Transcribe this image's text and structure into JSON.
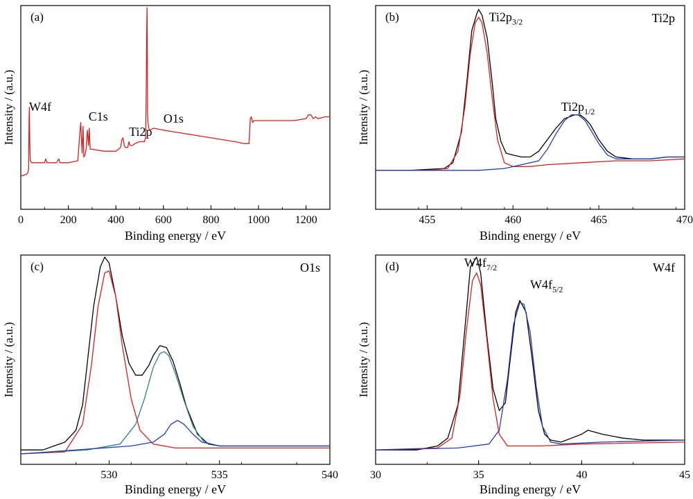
{
  "colors": {
    "survey": "#d62020",
    "raw": "#000000",
    "fit_red": "#d62020",
    "fit_blue": "#1f3fb0",
    "fit_teal": "#2e7f8a",
    "background": "#ffffff"
  },
  "chart_data": [
    {
      "panel": "(a)",
      "type": "line",
      "title": "",
      "element": "",
      "xlabel": "Binding energy / eV",
      "ylabel": "Intensity / (a.u.)",
      "xlim": [
        0,
        1300
      ],
      "ylim": [
        0,
        1
      ],
      "xticks": [
        "0",
        "200",
        "400",
        "600",
        "800",
        "1000",
        "1200"
      ],
      "xtick_values": [
        0,
        200,
        400,
        600,
        800,
        1000,
        1200
      ],
      "show_y_ticks": false,
      "annotations": [
        {
          "text": "W4f",
          "x": 35,
          "y": 0.46
        },
        {
          "text": "C1s",
          "x": 285,
          "y": 0.41
        },
        {
          "text": "Ti2p",
          "x": 455,
          "y": 0.33
        },
        {
          "text": "O1s",
          "x": 600,
          "y": 0.4
        }
      ],
      "series": [
        {
          "color_key": "survey",
          "x": [
            0,
            25,
            30,
            33,
            35,
            36,
            38,
            40,
            42,
            45,
            48,
            60,
            100,
            105,
            110,
            150,
            160,
            165,
            175,
            200,
            240,
            248,
            252,
            258,
            262,
            265,
            270,
            275,
            280,
            285,
            288,
            292,
            300,
            350,
            400,
            420,
            425,
            430,
            435,
            440,
            450,
            455,
            460,
            470,
            480,
            500,
            520,
            525,
            528,
            530,
            531,
            532,
            533,
            535,
            540,
            560,
            600,
            650,
            700,
            750,
            800,
            850,
            900,
            940,
            960,
            965,
            970,
            975,
            980,
            1000,
            1050,
            1100,
            1150,
            1200,
            1210,
            1220,
            1230,
            1240,
            1250,
            1280,
            1300
          ],
          "y": [
            0.12,
            0.13,
            0.14,
            0.16,
            0.42,
            0.48,
            0.3,
            0.2,
            0.2,
            0.19,
            0.19,
            0.19,
            0.19,
            0.21,
            0.19,
            0.19,
            0.21,
            0.19,
            0.19,
            0.19,
            0.2,
            0.34,
            0.4,
            0.24,
            0.38,
            0.22,
            0.23,
            0.26,
            0.36,
            0.28,
            0.37,
            0.26,
            0.26,
            0.25,
            0.25,
            0.27,
            0.31,
            0.32,
            0.28,
            0.27,
            0.27,
            0.3,
            0.28,
            0.28,
            0.29,
            0.3,
            0.3,
            0.32,
            0.6,
            0.9,
            1.0,
            0.85,
            0.45,
            0.4,
            0.36,
            0.37,
            0.36,
            0.35,
            0.34,
            0.33,
            0.32,
            0.31,
            0.3,
            0.29,
            0.29,
            0.42,
            0.43,
            0.4,
            0.41,
            0.41,
            0.41,
            0.41,
            0.41,
            0.42,
            0.44,
            0.44,
            0.42,
            0.43,
            0.42,
            0.43,
            0.43
          ]
        }
      ]
    },
    {
      "panel": "(b)",
      "type": "line",
      "title": "",
      "element": "Ti2p",
      "xlabel": "Binding energy / eV",
      "ylabel": "Intensity / (a.u.)",
      "xlim": [
        452,
        470
      ],
      "ylim": [
        0,
        1
      ],
      "xticks": [
        "455",
        "460",
        "465",
        "470"
      ],
      "xtick_values": [
        455,
        460,
        465,
        470
      ],
      "show_y_ticks": false,
      "annotations": [
        {
          "text": "Ti2p",
          "sub": "3/2",
          "x": 458.6,
          "y": 0.93
        },
        {
          "text": "Ti2p",
          "sub": "1/2",
          "x": 462.8,
          "y": 0.46
        }
      ],
      "series": [
        {
          "color_key": "raw",
          "x": [
            452,
            454,
            456,
            456.5,
            457,
            457.3,
            457.6,
            457.9,
            458.0,
            458.2,
            458.5,
            458.8,
            459.0,
            459.3,
            459.6,
            460,
            460.5,
            461,
            461.5,
            462,
            462.5,
            463,
            463.3,
            463.6,
            463.9,
            464.2,
            464.5,
            465,
            465.5,
            466,
            467,
            468,
            469,
            470
          ],
          "y": [
            0.15,
            0.15,
            0.16,
            0.19,
            0.35,
            0.6,
            0.88,
            0.97,
            0.99,
            0.96,
            0.84,
            0.6,
            0.42,
            0.3,
            0.24,
            0.23,
            0.22,
            0.22,
            0.25,
            0.31,
            0.37,
            0.42,
            0.43,
            0.44,
            0.44,
            0.42,
            0.39,
            0.31,
            0.25,
            0.22,
            0.21,
            0.21,
            0.22,
            0.22
          ]
        },
        {
          "color_key": "fit_red",
          "x": [
            452,
            455,
            456.2,
            456.8,
            457.2,
            457.5,
            457.8,
            458.0,
            458.2,
            458.5,
            458.8,
            459.1,
            459.5,
            460,
            461,
            462,
            464,
            466,
            468,
            470
          ],
          "y": [
            0.15,
            0.15,
            0.16,
            0.25,
            0.48,
            0.75,
            0.92,
            0.95,
            0.92,
            0.76,
            0.52,
            0.31,
            0.19,
            0.17,
            0.17,
            0.18,
            0.19,
            0.2,
            0.2,
            0.21
          ]
        },
        {
          "color_key": "fit_blue",
          "x": [
            452,
            455,
            458,
            459.5,
            460.5,
            461.5,
            462,
            462.5,
            463,
            463.4,
            463.8,
            464.2,
            464.6,
            465,
            465.5,
            466,
            467,
            468,
            469,
            470
          ],
          "y": [
            0.15,
            0.15,
            0.15,
            0.16,
            0.18,
            0.2,
            0.26,
            0.34,
            0.41,
            0.44,
            0.44,
            0.41,
            0.35,
            0.29,
            0.23,
            0.21,
            0.21,
            0.21,
            0.22,
            0.22
          ]
        }
      ]
    },
    {
      "panel": "(c)",
      "type": "line",
      "title": "",
      "element": "O1s",
      "xlabel": "Binding energy / eV",
      "ylabel": "Intensity / (a.u.)",
      "xlim": [
        526,
        540
      ],
      "ylim": [
        0,
        1
      ],
      "xticks": [
        "530",
        "535",
        "540"
      ],
      "xtick_values": [
        530,
        535,
        540
      ],
      "show_y_ticks": false,
      "annotations": [],
      "series": [
        {
          "color_key": "raw",
          "x": [
            526,
            527,
            527.5,
            528,
            528.5,
            528.8,
            529.0,
            529.3,
            529.6,
            529.8,
            530.0,
            530.3,
            530.6,
            530.9,
            531.2,
            531.5,
            531.8,
            532.0,
            532.3,
            532.6,
            532.9,
            533.2,
            533.5,
            534.0,
            534.5,
            535,
            536,
            537,
            538,
            539,
            540
          ],
          "y": [
            0.02,
            0.02,
            0.04,
            0.06,
            0.12,
            0.25,
            0.45,
            0.75,
            0.95,
            1.0,
            0.97,
            0.8,
            0.6,
            0.46,
            0.4,
            0.4,
            0.45,
            0.5,
            0.55,
            0.54,
            0.47,
            0.36,
            0.24,
            0.1,
            0.05,
            0.04,
            0.04,
            0.04,
            0.04,
            0.04,
            0.04
          ]
        },
        {
          "color_key": "fit_red",
          "x": [
            526,
            528,
            528.8,
            529.2,
            529.5,
            529.8,
            530.0,
            530.3,
            530.6,
            531.0,
            531.4,
            532,
            533,
            534,
            535,
            537,
            540
          ],
          "y": [
            0.0,
            0.01,
            0.15,
            0.45,
            0.75,
            0.92,
            0.93,
            0.8,
            0.55,
            0.28,
            0.12,
            0.05,
            0.03,
            0.03,
            0.03,
            0.03,
            0.03
          ]
        },
        {
          "color_key": "fit_teal",
          "x": [
            526,
            529,
            530.5,
            531.2,
            531.6,
            532.0,
            532.3,
            532.5,
            532.7,
            533.0,
            533.4,
            533.8,
            534.3,
            535,
            537,
            540
          ],
          "y": [
            0.0,
            0.02,
            0.05,
            0.15,
            0.28,
            0.44,
            0.51,
            0.52,
            0.5,
            0.41,
            0.27,
            0.14,
            0.06,
            0.04,
            0.04,
            0.04
          ]
        },
        {
          "color_key": "fit_blue",
          "x": [
            526,
            531,
            532,
            532.5,
            532.8,
            533.1,
            533.4,
            533.8,
            534.2,
            535,
            540
          ],
          "y": [
            0.0,
            0.04,
            0.06,
            0.1,
            0.15,
            0.17,
            0.15,
            0.1,
            0.06,
            0.04,
            0.04
          ]
        }
      ]
    },
    {
      "panel": "(d)",
      "type": "line",
      "title": "",
      "element": "W4f",
      "xlabel": "Binding energy / eV",
      "ylabel": "Intensity / (a.u.)",
      "xlim": [
        30,
        45
      ],
      "ylim": [
        0,
        1
      ],
      "xticks": [
        "30",
        "35",
        "40",
        "45"
      ],
      "xtick_values": [
        30,
        35,
        40,
        45
      ],
      "show_y_ticks": false,
      "annotations": [
        {
          "text": "W4f",
          "sub": "7/2",
          "x": 34.3,
          "y": 0.95
        },
        {
          "text": "W4f",
          "sub": "5/2",
          "x": 37.5,
          "y": 0.84
        }
      ],
      "series": [
        {
          "color_key": "raw",
          "x": [
            30,
            32,
            33,
            33.5,
            34.0,
            34.3,
            34.6,
            34.9,
            35.1,
            35.4,
            35.7,
            36.0,
            36.3,
            36.5,
            36.8,
            37.0,
            37.3,
            37.6,
            37.9,
            38.2,
            38.5,
            39,
            39.5,
            40,
            40.3,
            41,
            42,
            43,
            44,
            45
          ],
          "y": [
            0.02,
            0.02,
            0.04,
            0.08,
            0.25,
            0.6,
            0.95,
            1.0,
            0.92,
            0.6,
            0.33,
            0.22,
            0.26,
            0.45,
            0.72,
            0.78,
            0.72,
            0.48,
            0.22,
            0.1,
            0.07,
            0.06,
            0.08,
            0.1,
            0.12,
            0.1,
            0.08,
            0.07,
            0.07,
            0.07
          ]
        },
        {
          "color_key": "fit_red",
          "x": [
            30,
            33,
            33.7,
            34.1,
            34.4,
            34.7,
            34.9,
            35.1,
            35.4,
            35.7,
            36.0,
            36.4,
            37,
            38,
            40,
            45
          ],
          "y": [
            0.02,
            0.03,
            0.08,
            0.3,
            0.62,
            0.88,
            0.92,
            0.86,
            0.58,
            0.28,
            0.1,
            0.04,
            0.04,
            0.04,
            0.05,
            0.06
          ]
        },
        {
          "color_key": "fit_blue",
          "x": [
            30,
            34,
            35.5,
            36.0,
            36.4,
            36.7,
            37.0,
            37.2,
            37.5,
            37.8,
            38.1,
            38.5,
            39,
            41,
            45
          ],
          "y": [
            0.02,
            0.03,
            0.05,
            0.12,
            0.38,
            0.66,
            0.77,
            0.76,
            0.62,
            0.34,
            0.14,
            0.06,
            0.05,
            0.06,
            0.07
          ]
        }
      ]
    }
  ]
}
